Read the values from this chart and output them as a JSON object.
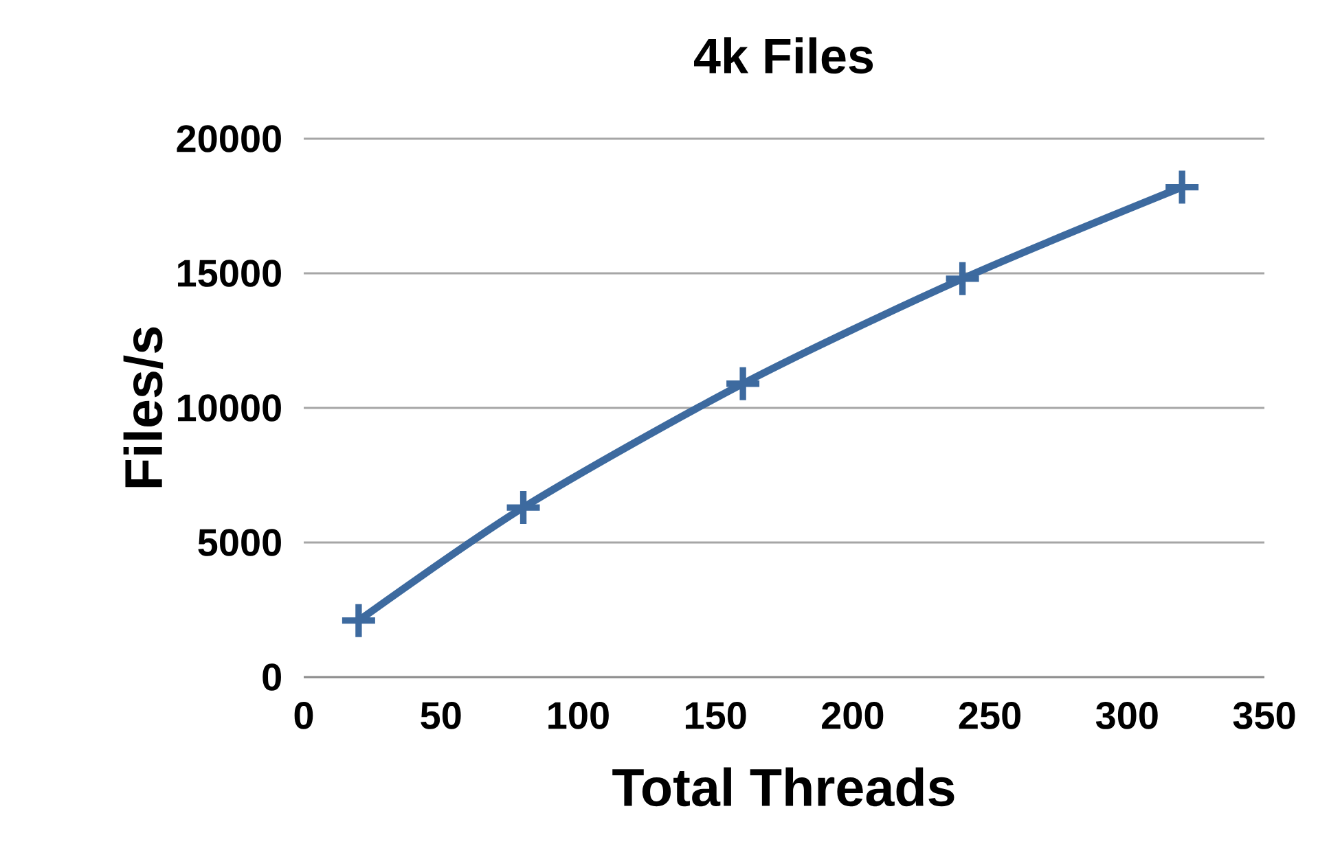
{
  "chart_data": {
    "type": "line",
    "title": "4k Files",
    "xlabel": "Total Threads",
    "ylabel": "Files/s",
    "x": [
      20,
      80,
      160,
      240,
      320
    ],
    "series": [
      {
        "color": "#3d6a9f",
        "values": [
          2100,
          6300,
          10900,
          14800,
          18200
        ]
      }
    ],
    "xlim": [
      0,
      350
    ],
    "xticks": [
      0,
      50,
      100,
      150,
      200,
      250,
      300,
      350
    ],
    "ylim": [
      0,
      20000
    ],
    "yticks": [
      0,
      5000,
      10000,
      15000,
      20000
    ],
    "grid": "y",
    "marker": "cross",
    "line_style": "solid"
  }
}
